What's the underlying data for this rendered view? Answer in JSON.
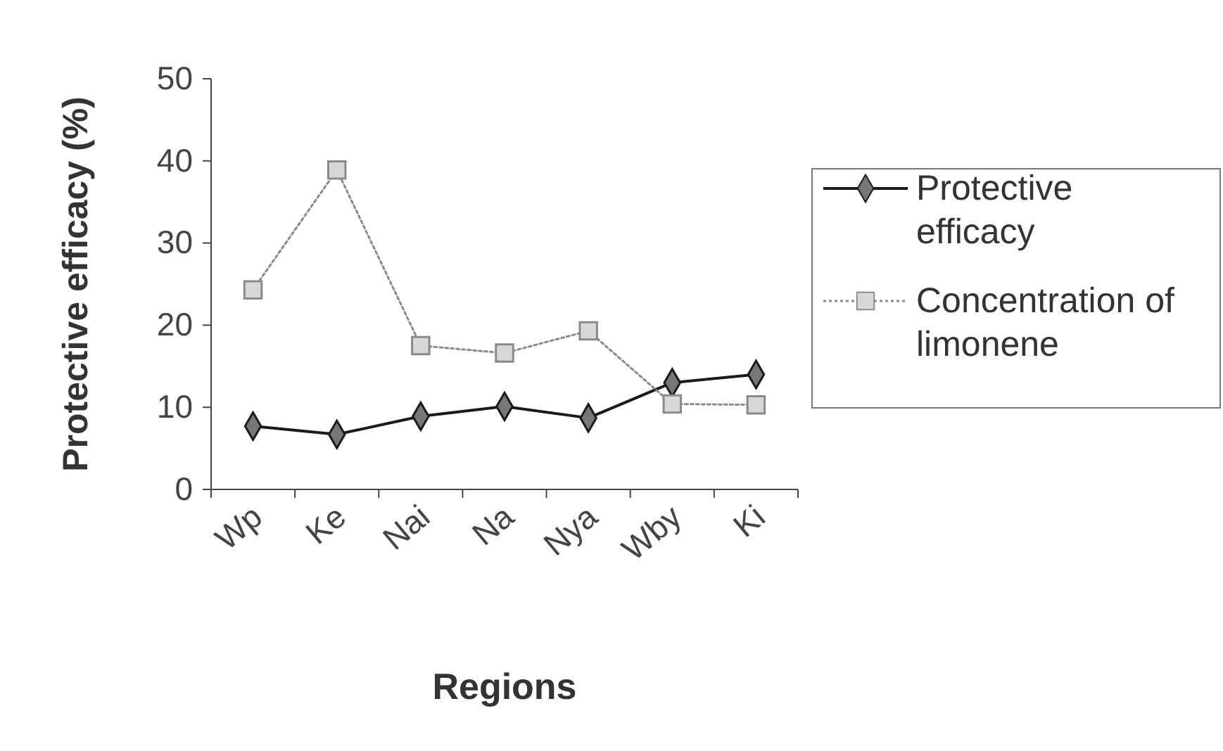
{
  "chart_data": {
    "type": "line",
    "xlabel": "Regions",
    "ylabel": "Protective efficacy (%)",
    "categories": [
      "Wp",
      "Ke",
      "Nai",
      "Na",
      "Nya",
      "Wby",
      "Ki"
    ],
    "series": [
      {
        "name": "Protective efficacy",
        "color": "#1a1a1a",
        "values": [
          7.7,
          6.7,
          8.9,
          10.1,
          8.7,
          13.0,
          14.0
        ],
        "marker": "diamond",
        "line_style": "solid"
      },
      {
        "name": "Concentration of limonene",
        "color": "#8a8a8a",
        "values": [
          24.3,
          38.9,
          17.5,
          16.6,
          19.3,
          10.4,
          10.3
        ],
        "marker": "square",
        "line_style": "dotted"
      }
    ],
    "ylim": [
      0,
      50
    ],
    "yticks": [
      0,
      10,
      20,
      30,
      40,
      50
    ],
    "grid": false,
    "legend": "right"
  }
}
